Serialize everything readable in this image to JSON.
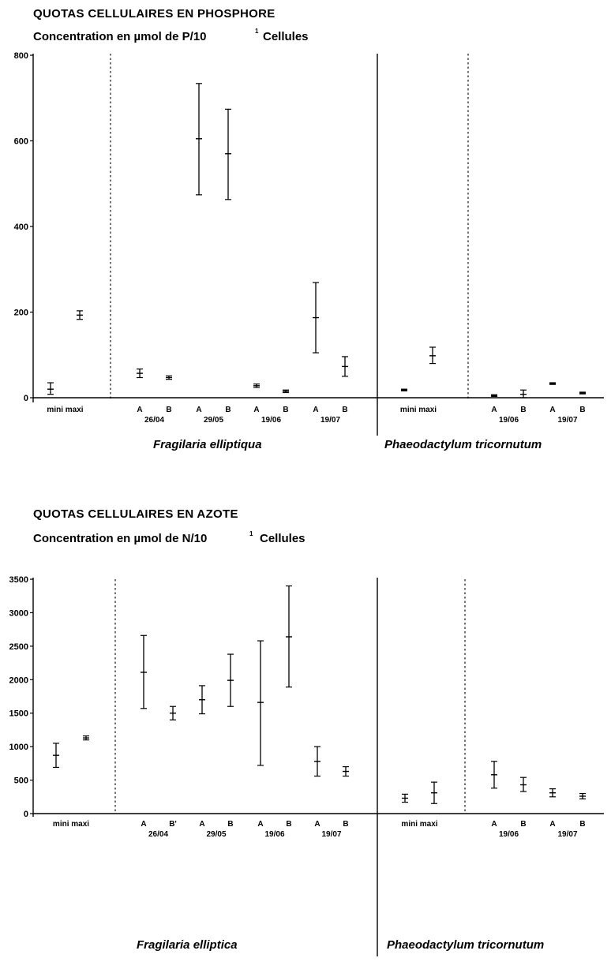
{
  "chart_data": [
    {
      "type": "scatter",
      "title": "QUOTAS CELLULAIRES EN PHOSPHORE",
      "subtitle_pre": "Concentration en µmol de P/10",
      "subtitle_sup": "1",
      "subtitle_post": "Cellules",
      "ylim": [
        0,
        800
      ],
      "yticks": [
        0,
        200,
        400,
        600,
        800
      ],
      "grid": false,
      "species": [
        {
          "name": "Fragilaria elliptiqua",
          "groups": [
            {
              "label": "mini maxi",
              "categories": [
                "mini",
                "maxi"
              ]
            },
            {
              "label": "26/04",
              "categories": [
                "A",
                "B"
              ]
            },
            {
              "label": "29/05",
              "categories": [
                "A",
                "B"
              ]
            },
            {
              "label": "19/06",
              "categories": [
                "A",
                "B"
              ]
            },
            {
              "label": "19/07",
              "categories": [
                "A",
                "B"
              ]
            }
          ],
          "values": [
            20,
            193,
            57,
            47,
            605,
            570,
            28,
            15,
            187,
            73
          ],
          "errors": [
            [
              8,
              35
            ],
            [
              183,
              203
            ],
            [
              47,
              67
            ],
            [
              43,
              51
            ],
            [
              474,
              734
            ],
            [
              463,
              674
            ],
            [
              24,
              32
            ],
            [
              12,
              18
            ],
            [
              105,
              269
            ],
            [
              50,
              96
            ]
          ]
        },
        {
          "name": "Phaeodactylum tricornutum",
          "groups": [
            {
              "label": "mini maxi",
              "categories": [
                "mini",
                "maxi"
              ]
            },
            {
              "label": "19/06",
              "categories": [
                "A",
                "B"
              ]
            },
            {
              "label": "19/07",
              "categories": [
                "A",
                "B"
              ]
            }
          ],
          "values": [
            18,
            98,
            5,
            8,
            33,
            11
          ],
          "errors": [
            [
              16,
              20
            ],
            [
              80,
              118
            ],
            [
              3,
              7
            ],
            [
              0,
              18
            ],
            [
              31,
              35
            ],
            [
              9,
              13
            ]
          ]
        }
      ]
    },
    {
      "type": "scatter",
      "title": "QUOTAS CELLULAIRES EN AZOTE",
      "subtitle_pre": "Concentration en µmol de N/10",
      "subtitle_sup": "1",
      "subtitle_post": "Cellules",
      "ylim": [
        0,
        3500
      ],
      "yticks": [
        0,
        500,
        1000,
        1500,
        2000,
        2500,
        3000,
        3500
      ],
      "grid": false,
      "species": [
        {
          "name": "Fragilaria elliptica",
          "groups": [
            {
              "label": "mini maxi",
              "categories": [
                "mini",
                "maxi"
              ]
            },
            {
              "label": "26/04",
              "categories": [
                "A",
                "B'"
              ]
            },
            {
              "label": "29/05",
              "categories": [
                "A",
                "B"
              ]
            },
            {
              "label": "19/06",
              "categories": [
                "A",
                "B"
              ]
            },
            {
              "label": "19/07",
              "categories": [
                "A",
                "B"
              ]
            }
          ],
          "values": [
            870,
            1130,
            2110,
            1500,
            1700,
            1990,
            1660,
            2640,
            780,
            630
          ],
          "errors": [
            [
              690,
              1050
            ],
            [
              1100,
              1160
            ],
            [
              1570,
              2660
            ],
            [
              1400,
              1600
            ],
            [
              1490,
              1910
            ],
            [
              1600,
              2380
            ],
            [
              720,
              2580
            ],
            [
              1890,
              3400
            ],
            [
              560,
              1000
            ],
            [
              560,
              700
            ]
          ]
        },
        {
          "name": "Phaeodactylum tricornutum",
          "groups": [
            {
              "label": "mini maxi",
              "categories": [
                "mini",
                "maxi"
              ]
            },
            {
              "label": "19/06",
              "categories": [
                "A",
                "B"
              ]
            },
            {
              "label": "19/07",
              "categories": [
                "A",
                "B"
              ]
            }
          ],
          "values": [
            230,
            310,
            580,
            430,
            310,
            260
          ],
          "errors": [
            [
              170,
              290
            ],
            [
              150,
              470
            ],
            [
              380,
              780
            ],
            [
              330,
              540
            ],
            [
              250,
              370
            ],
            [
              220,
              300
            ]
          ]
        }
      ]
    }
  ]
}
